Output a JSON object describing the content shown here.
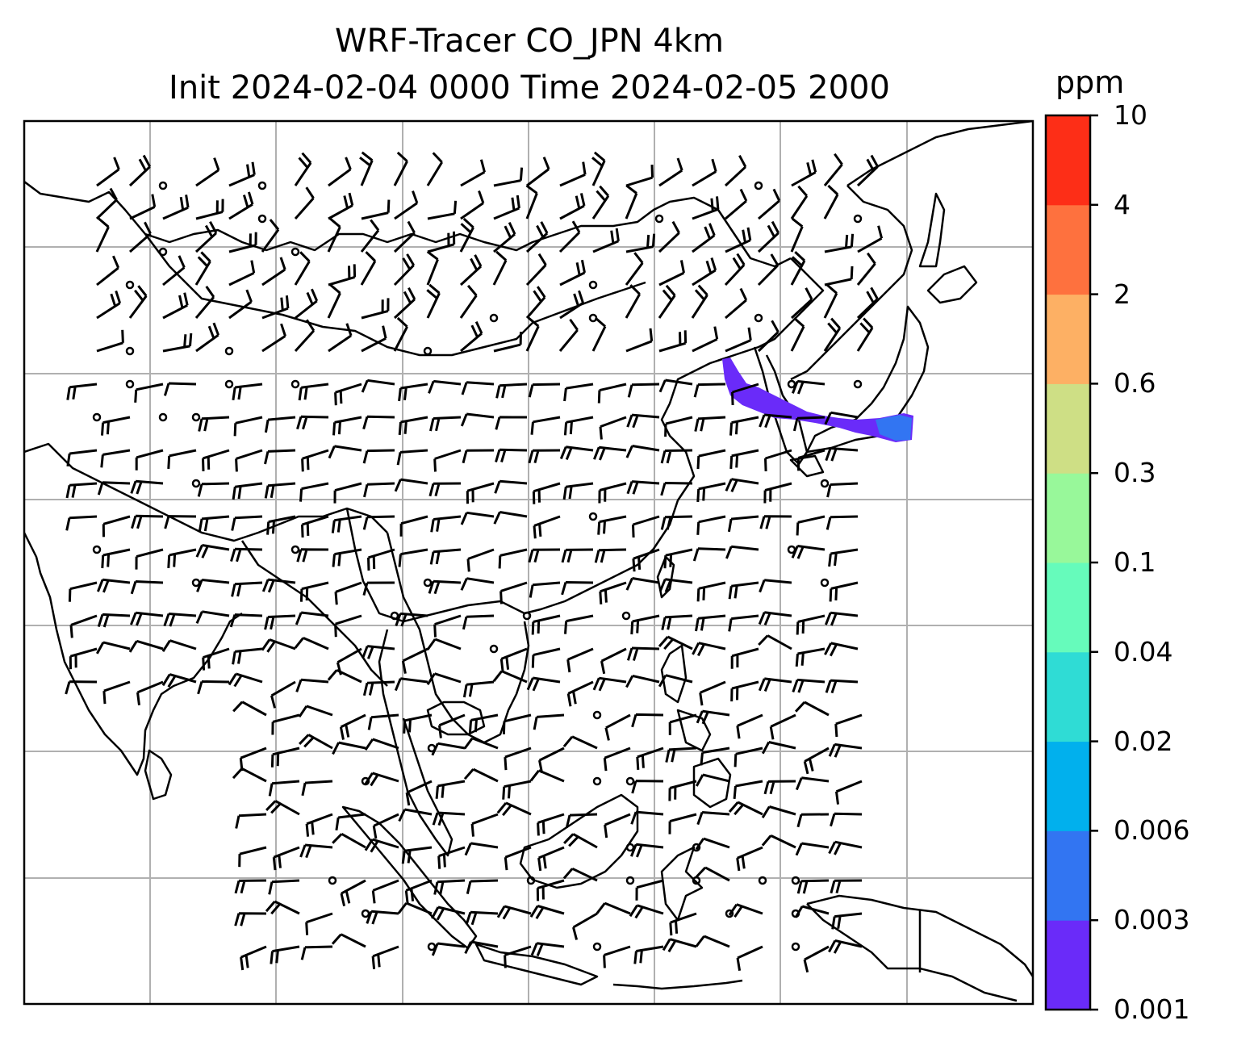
{
  "title": {
    "line1": "WRF-Tracer CO_JPN 4km",
    "line2": "Init 2024-02-04 0000 Time 2024-02-05 2000"
  },
  "colorbar": {
    "unit": "ppm",
    "levels": [
      "0.001",
      "0.003",
      "0.006",
      "0.02",
      "0.04",
      "0.1",
      "0.3",
      "0.6",
      "2",
      "4",
      "10"
    ],
    "colors": [
      "#6a2bf9",
      "#3275f2",
      "#01b0ed",
      "#2fdcd5",
      "#66fbbb",
      "#98f89a",
      "#cedf85",
      "#fdb064",
      "#fe713e",
      "#fd2e17"
    ]
  },
  "map": {
    "gridline_color": "#b0b0b0",
    "coastline_color": "#000000",
    "plume_colors": [
      "#6a2bf9",
      "#3275f2"
    ]
  }
}
